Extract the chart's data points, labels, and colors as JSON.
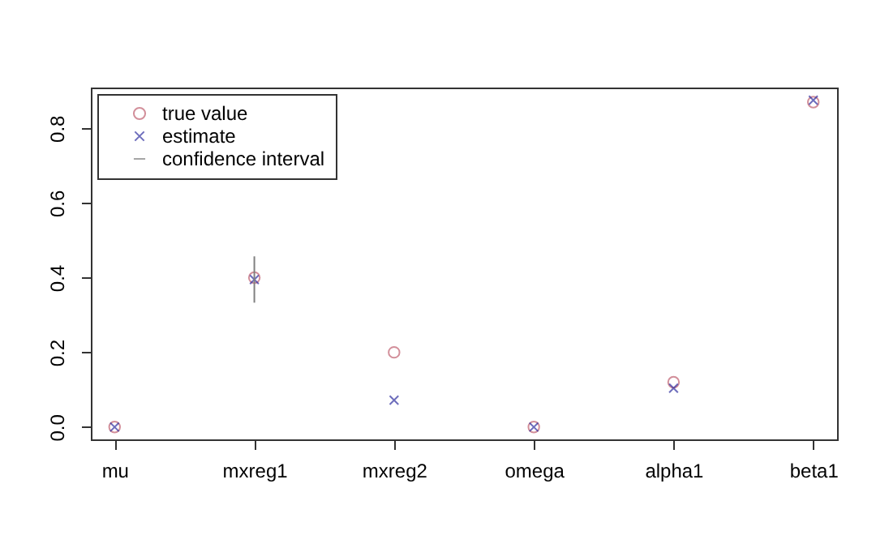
{
  "chart_data": {
    "type": "scatter",
    "categories": [
      "mu",
      "mxreg1",
      "mxreg2",
      "omega",
      "alpha1",
      "beta1"
    ],
    "series": [
      {
        "name": "true value",
        "type": "scatter",
        "marker": "circle",
        "color": "#c06070",
        "values": [
          0,
          0.4,
          0.2,
          0,
          0.12,
          0.87
        ]
      },
      {
        "name": "estimate",
        "type": "scatter",
        "marker": "cross",
        "color": "#3030a0",
        "values": [
          0,
          0.395,
          0.072,
          0,
          0.104,
          0.875
        ],
        "errors": [
          null,
          [
            0.333,
            0.457
          ],
          null,
          null,
          null,
          null
        ]
      },
      {
        "name": "confidence interval",
        "type": "line",
        "color": "#808080",
        "values": [
          null,
          null,
          null,
          null,
          null,
          null
        ]
      }
    ],
    "ylim": [
      -0.033,
      0.909
    ],
    "yticks": [
      {
        "value": 0,
        "label": "0.0"
      },
      {
        "value": 0.2,
        "label": "0.2"
      },
      {
        "value": 0.4,
        "label": "0.4"
      },
      {
        "value": 0.6,
        "label": "0.6"
      },
      {
        "value": 0.8,
        "label": "0.8"
      }
    ],
    "grid": false,
    "legend": "top left"
  }
}
